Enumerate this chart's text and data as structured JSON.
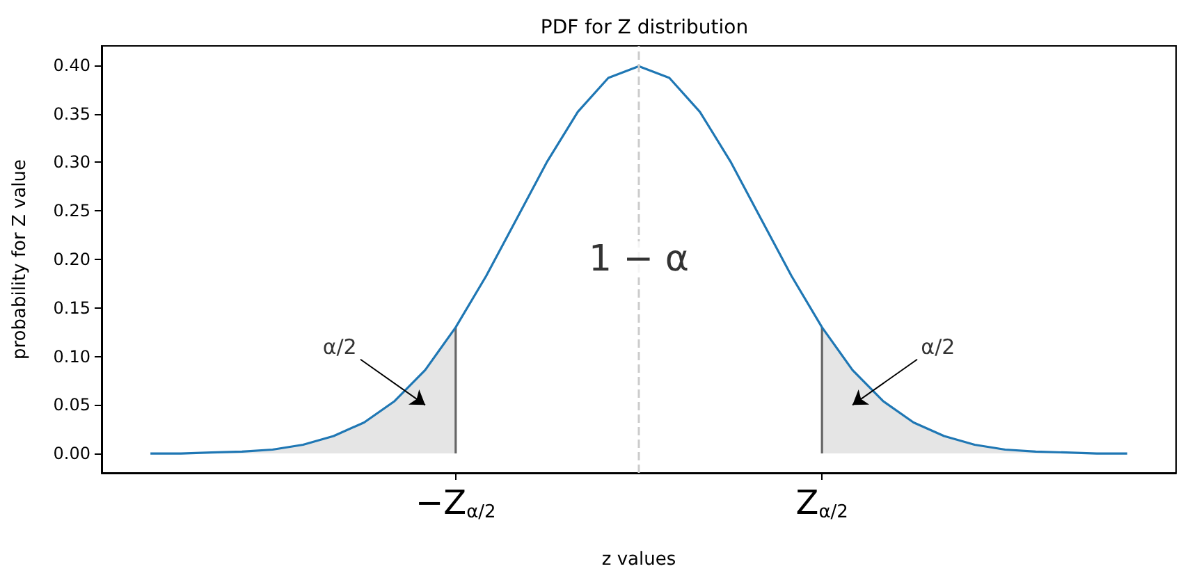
{
  "chart_data": {
    "type": "line",
    "title": "PDF for Z distribution",
    "xlabel": "z values",
    "ylabel": "probability for Z value",
    "series": [
      {
        "type": "area",
        "color": "#e5e5e5",
        "x": [
          -4,
          -3.75,
          -3.5,
          -3.25,
          -3,
          -2.75,
          -2.5,
          -2.25,
          -2,
          -1.75,
          -1.5
        ],
        "values": [
          0.0,
          0.0,
          0.001,
          0.002,
          0.004,
          0.009,
          0.018,
          0.032,
          0.054,
          0.086,
          0.13
        ]
      },
      {
        "type": "area",
        "color": "#e5e5e5",
        "x": [
          1.5,
          1.75,
          2,
          2.25,
          2.5,
          2.75,
          3,
          3.25,
          3.5,
          3.75,
          4
        ],
        "values": [
          0.13,
          0.086,
          0.054,
          0.032,
          0.018,
          0.009,
          0.004,
          0.002,
          0.001,
          0.0,
          0.0
        ]
      },
      {
        "type": "line",
        "color": "#666666",
        "x": [
          -1.5,
          -1.5
        ],
        "values": [
          0,
          0.13
        ]
      },
      {
        "type": "line",
        "color": "#666666",
        "x": [
          1.5,
          1.5
        ],
        "values": [
          0,
          0.13
        ]
      },
      {
        "color": "#1f77b4",
        "x": [
          -4,
          -3.75,
          -3.5,
          -3.25,
          -3,
          -2.75,
          -2.5,
          -2.25,
          -2,
          -1.75,
          -1.5,
          -1.25,
          -1,
          -0.75,
          -0.5,
          -0.25,
          0,
          0.25,
          0.5,
          0.75,
          1,
          1.25,
          1.5,
          1.75,
          2,
          2.25,
          2.5,
          2.75,
          3,
          3.25,
          3.5,
          3.75,
          4
        ],
        "values": [
          0.0,
          0.0,
          0.001,
          0.002,
          0.004,
          0.009,
          0.018,
          0.032,
          0.054,
          0.086,
          0.13,
          0.183,
          0.242,
          0.301,
          0.352,
          0.387,
          0.399,
          0.387,
          0.352,
          0.301,
          0.242,
          0.183,
          0.13,
          0.086,
          0.054,
          0.032,
          0.018,
          0.009,
          0.004,
          0.002,
          0.001,
          0.0,
          0.0
        ]
      }
    ],
    "xlim": [
      -4.4,
      4.4
    ],
    "xticks": [
      {
        "value": -1.5,
        "label": "−Z$_{α/2}$"
      },
      {
        "value": 1.5,
        "label": "Z$_{α/2}$"
      }
    ],
    "ylim": [
      -0.02,
      0.42
    ],
    "yticks": [
      {
        "value": 0,
        "label": "0.00"
      },
      {
        "value": 0.05,
        "label": "0.05"
      },
      {
        "value": 0.1,
        "label": "0.10"
      },
      {
        "value": 0.15,
        "label": "0.15"
      },
      {
        "value": 0.2,
        "label": "0.20"
      },
      {
        "value": 0.25,
        "label": "0.25"
      },
      {
        "value": 0.3,
        "label": "0.30"
      },
      {
        "value": 0.35,
        "label": "0.35"
      },
      {
        "value": 0.4,
        "label": "0.40"
      }
    ],
    "ref_lines": [
      {
        "axis": "x",
        "value": 0,
        "color": "#cccccc",
        "line_style": "dashed"
      }
    ],
    "annotations": [
      "1 − α",
      "α/2",
      "α/2"
    ],
    "grid": false,
    "marker": "none"
  }
}
